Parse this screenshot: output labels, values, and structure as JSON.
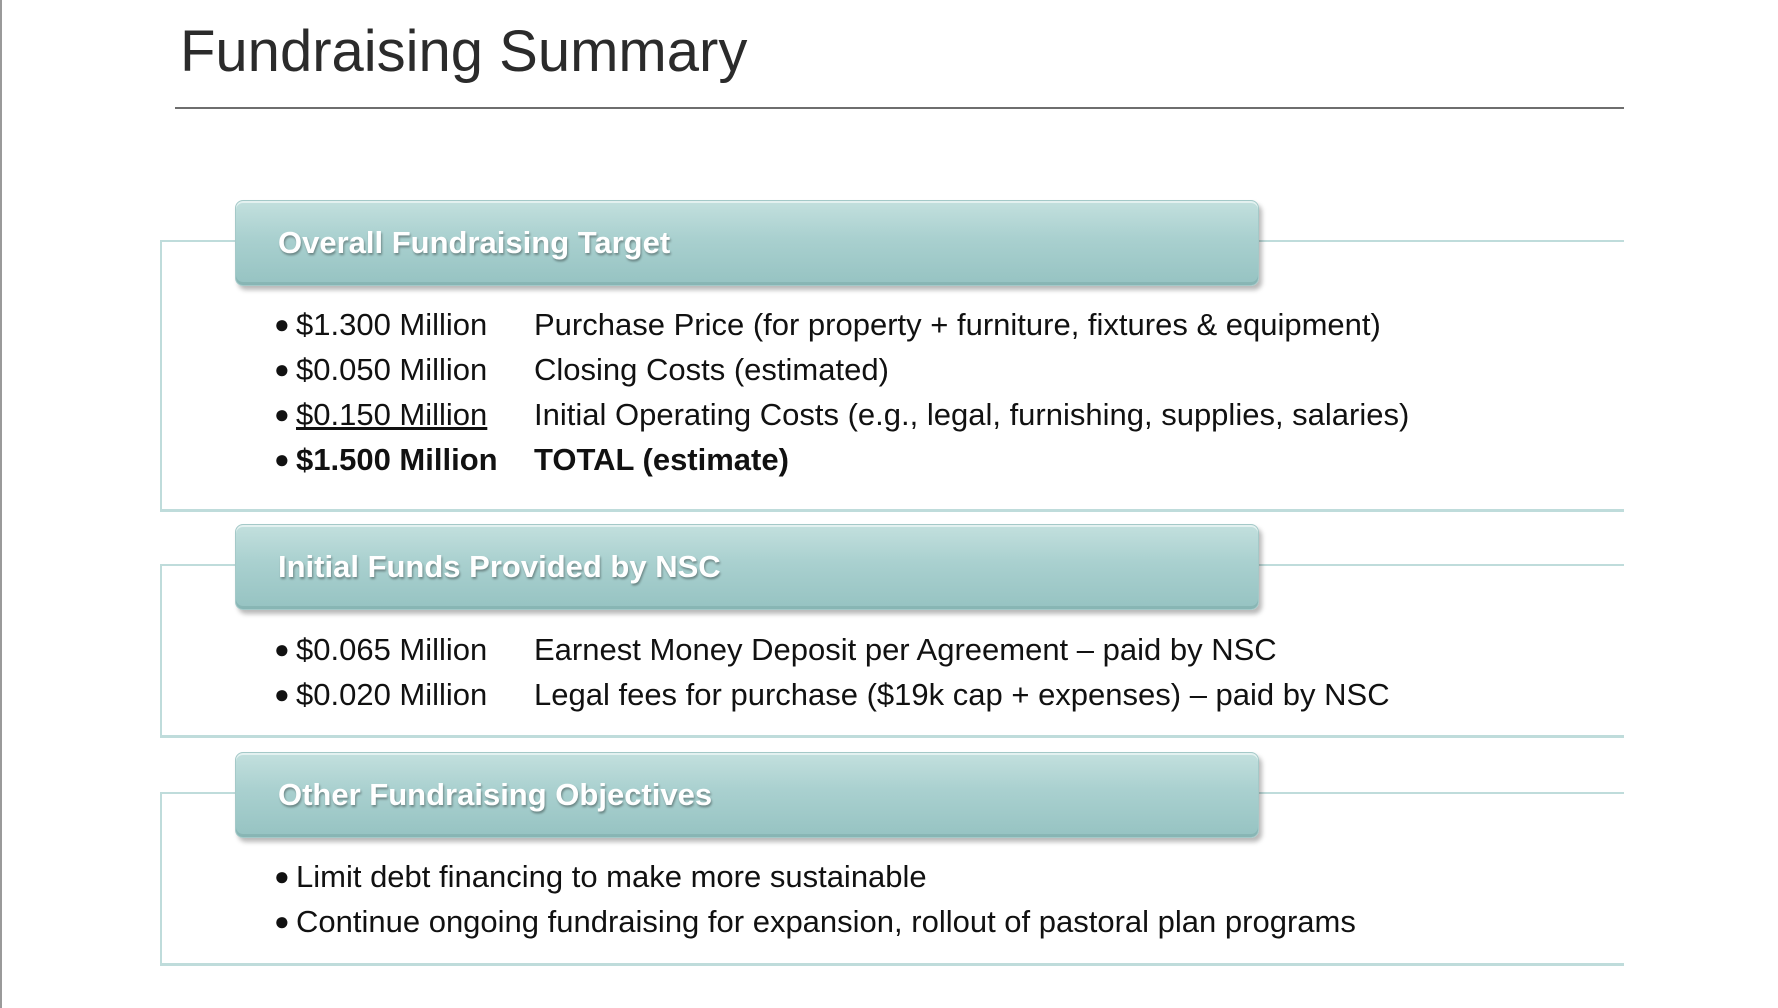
{
  "slide": {
    "title": "Fundraising Summary",
    "sections": [
      {
        "header": "Overall Fundraising Target",
        "items": [
          {
            "amount": "$1.300 Million",
            "text": "Purchase Price (for property + furniture, fixtures & equipment)"
          },
          {
            "amount": "$0.050 Million",
            "text": "Closing Costs (estimated)"
          },
          {
            "amount": "$0.150 Million",
            "text": "Initial Operating Costs (e.g., legal, furnishing, supplies, salaries)"
          },
          {
            "amount": "$1.500 Million",
            "text": "TOTAL (estimate)"
          }
        ]
      },
      {
        "header": "Initial Funds Provided by NSC",
        "items": [
          {
            "amount": "$0.065 Million",
            "text": "Earnest Money Deposit per Agreement – paid by NSC"
          },
          {
            "amount": "$0.020 Million",
            "text": "Legal fees for purchase ($19k cap + expenses) – paid by NSC"
          }
        ]
      },
      {
        "header": "Other Fundraising Objectives",
        "items": [
          {
            "text": "Limit debt financing to make more sustainable"
          },
          {
            "text": "Continue ongoing fundraising for expansion, rollout of pastoral plan programs"
          }
        ]
      }
    ]
  },
  "colors": {
    "header_bar": "#a9d0cf",
    "frame_line": "#bfdcdb",
    "title_text": "#2b2b2b",
    "body_text": "#111111"
  }
}
